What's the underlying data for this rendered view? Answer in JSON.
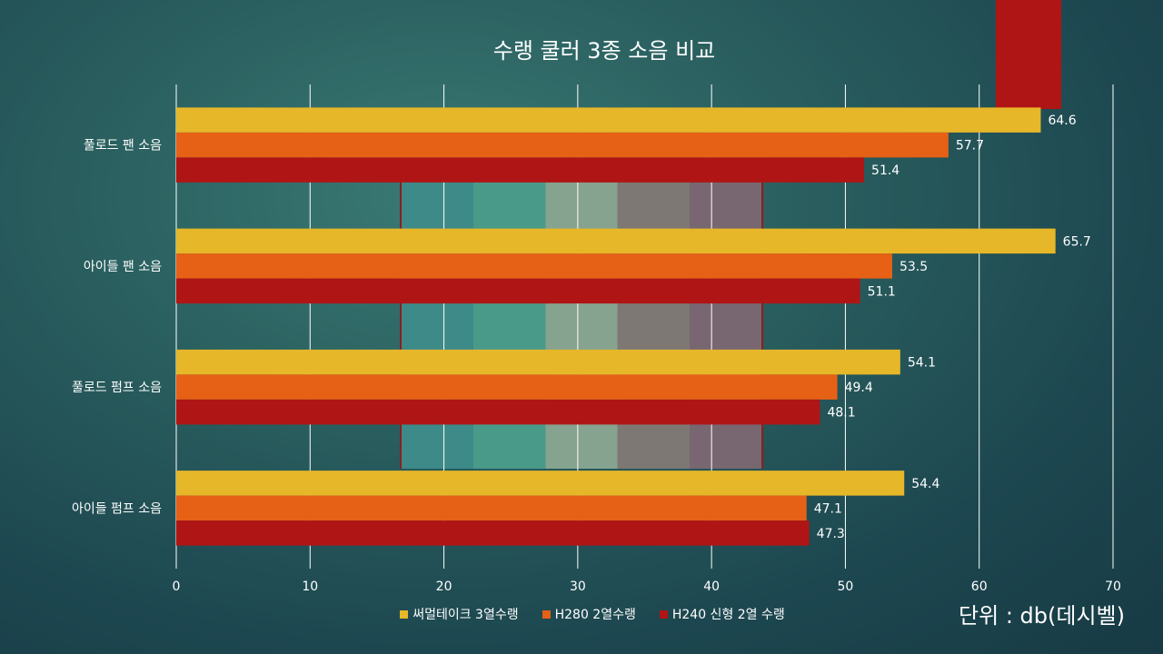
{
  "chart_data": {
    "type": "bar",
    "orientation": "horizontal",
    "title": "수랭 쿨러 3종 소음 비교",
    "categories": [
      "풀로드 팬 소음",
      "아이들 팬 소음",
      "풀로드 펌프 소음",
      "아이들 펌프 소음"
    ],
    "series": [
      {
        "name": "써멀테이크 3열수랭",
        "color": "#e6b729",
        "values": [
          64.6,
          65.7,
          54.1,
          54.4
        ]
      },
      {
        "name": "H280 2열수랭",
        "color": "#e66115",
        "values": [
          57.7,
          53.5,
          49.4,
          47.1
        ]
      },
      {
        "name": "H240 신형 2열 수랭",
        "color": "#b01515",
        "values": [
          51.4,
          51.1,
          48.1,
          47.3
        ]
      }
    ],
    "xlim": [
      0,
      70
    ],
    "ticks": [
      0,
      10,
      20,
      30,
      40,
      50,
      60,
      70
    ],
    "tick_labels": [
      "0",
      "10",
      "20",
      "30",
      "40",
      "50",
      "60",
      "70"
    ],
    "grid": true,
    "legend_position": "bottom",
    "unit_note": "단위 : db(데시벨)"
  }
}
